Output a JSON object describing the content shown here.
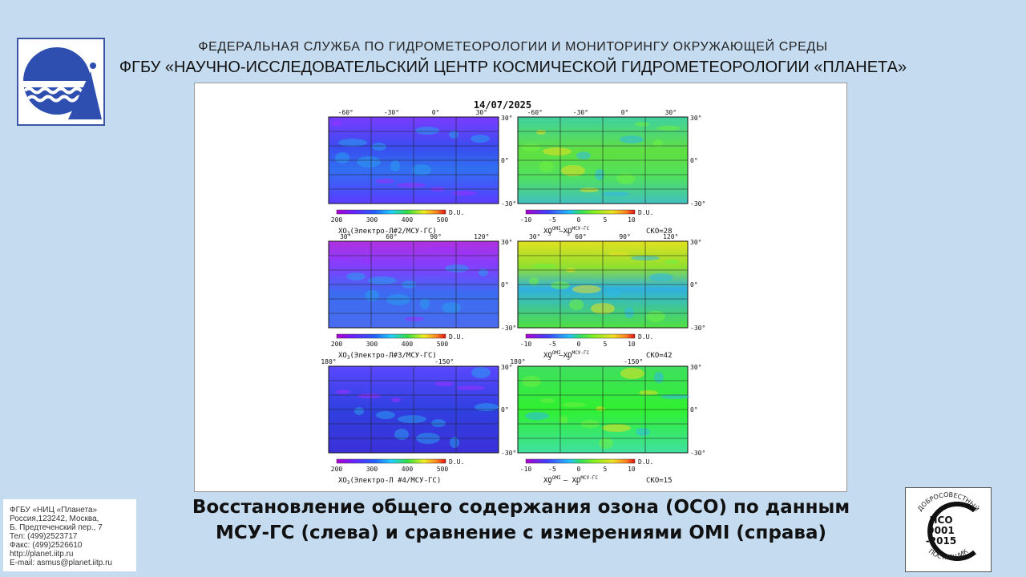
{
  "header": {
    "line1": "ФЕДЕРАЛЬНАЯ СЛУЖБА ПО ГИДРОМЕТЕОРОЛОГИИ И МОНИТОРИНГУ ОКРУЖАЮЩЕЙ СРЕДЫ",
    "line2": "ФГБУ «НАУЧНО-ИССЛЕДОВАТЕЛЬСКИЙ ЦЕНТР КОСМИЧЕСКОЙ ГИДРОМЕТЕОРОЛОГИИ «ПЛАНЕТА»"
  },
  "figure": {
    "date": "14/07/2025",
    "unit": "D.U.",
    "left_scale": [
      "200",
      "300",
      "400",
      "500"
    ],
    "right_scale": [
      "-10",
      "-5",
      "0",
      "5",
      "10"
    ],
    "rows": [
      {
        "top_lons_left": [
          "-60°",
          "-30°",
          "0°",
          "30°"
        ],
        "top_lons_right": [
          "-60°",
          "-30°",
          "0°",
          "30°"
        ],
        "lat_labels": [
          "30°",
          "0°",
          "-30°"
        ],
        "left_label_main": "XO",
        "left_label_rest": "(Электро-Л#2/МСУ-ГС)",
        "right_label_a": "XO",
        "right_label_b": "–XO",
        "sup_a": "OMI",
        "sup_b": "МСУ-ГС",
        "sub": "3",
        "sko": "СКО=28"
      },
      {
        "top_lons_left": [
          "30°",
          "60°",
          "90°",
          "120°"
        ],
        "top_lons_right": [
          "30°",
          "60°",
          "90°",
          "120°"
        ],
        "lat_labels": [
          "30°",
          "0°",
          "-30°"
        ],
        "left_label_main": "XO",
        "left_label_rest": "(Электро-Л#3/МСУ-ГС)",
        "right_label_a": "XO",
        "right_label_b": "–XO",
        "sup_a": "OMI",
        "sup_b": "МСУ-ГС",
        "sub": "3",
        "sko": "СКО=42"
      },
      {
        "top_lons_left": [
          "180°",
          "-150°"
        ],
        "top_lons_right": [
          "180°",
          "-150°"
        ],
        "lat_labels": [
          "30°",
          "0°",
          "-30°"
        ],
        "left_label_main": "XO",
        "left_label_rest": "(Электро-Л #4/МСУ-ГС)",
        "right_label_a": "XO",
        "right_label_b": " – XO",
        "sup_a": "OMI",
        "sup_b": "МСУ-ГС",
        "sub": "3",
        "sko": "СКО=15"
      }
    ]
  },
  "caption": {
    "line1": "Восстановление общего содержания озона (ОСО) по данным",
    "line2": "МСУ-ГС (слева) и сравнение с измерениями OMI (справа)"
  },
  "contact": {
    "lines": [
      "ФГБУ «НИЦ «Планета»",
      "Россия,123242, Москва,",
      "Б. Предтеченский пер., 7",
      "Тел:   (499)2523717",
      "Факс: (499)2526610",
      "http://planet.iitp.ru",
      "E-mail: asmus@planet.iitp.ru"
    ]
  },
  "iso": {
    "arc_top": "ДОБРОСОВЕСТНЫЙ",
    "code1": "ИСО",
    "code2": "9001",
    "code3": "-2015",
    "arc_bottom": "ПОСТАВЩИК"
  },
  "colors": {
    "background": "#c5dcf0",
    "logo_blue": "#2f4fb0"
  }
}
